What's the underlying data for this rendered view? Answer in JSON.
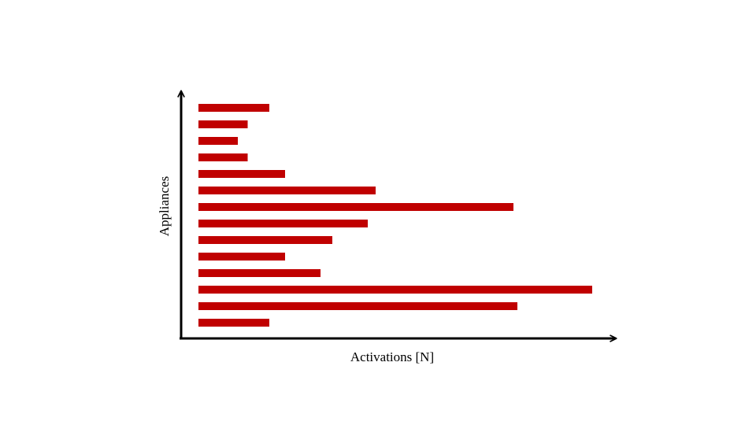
{
  "chart_data": {
    "type": "bar",
    "orientation": "horizontal",
    "xlabel": "Activations [N]",
    "ylabel": "Appliances",
    "title": "",
    "grid": false,
    "legend": "none",
    "tick_labels_shown": false,
    "bar_color": "#c00000",
    "axis_color": "#000000",
    "xlim": [
      0,
      100
    ],
    "series": [
      {
        "values": [
          18,
          12.5,
          10,
          12.5,
          22,
          45,
          80,
          43,
          34,
          22,
          31,
          100,
          81,
          18
        ]
      }
    ]
  }
}
